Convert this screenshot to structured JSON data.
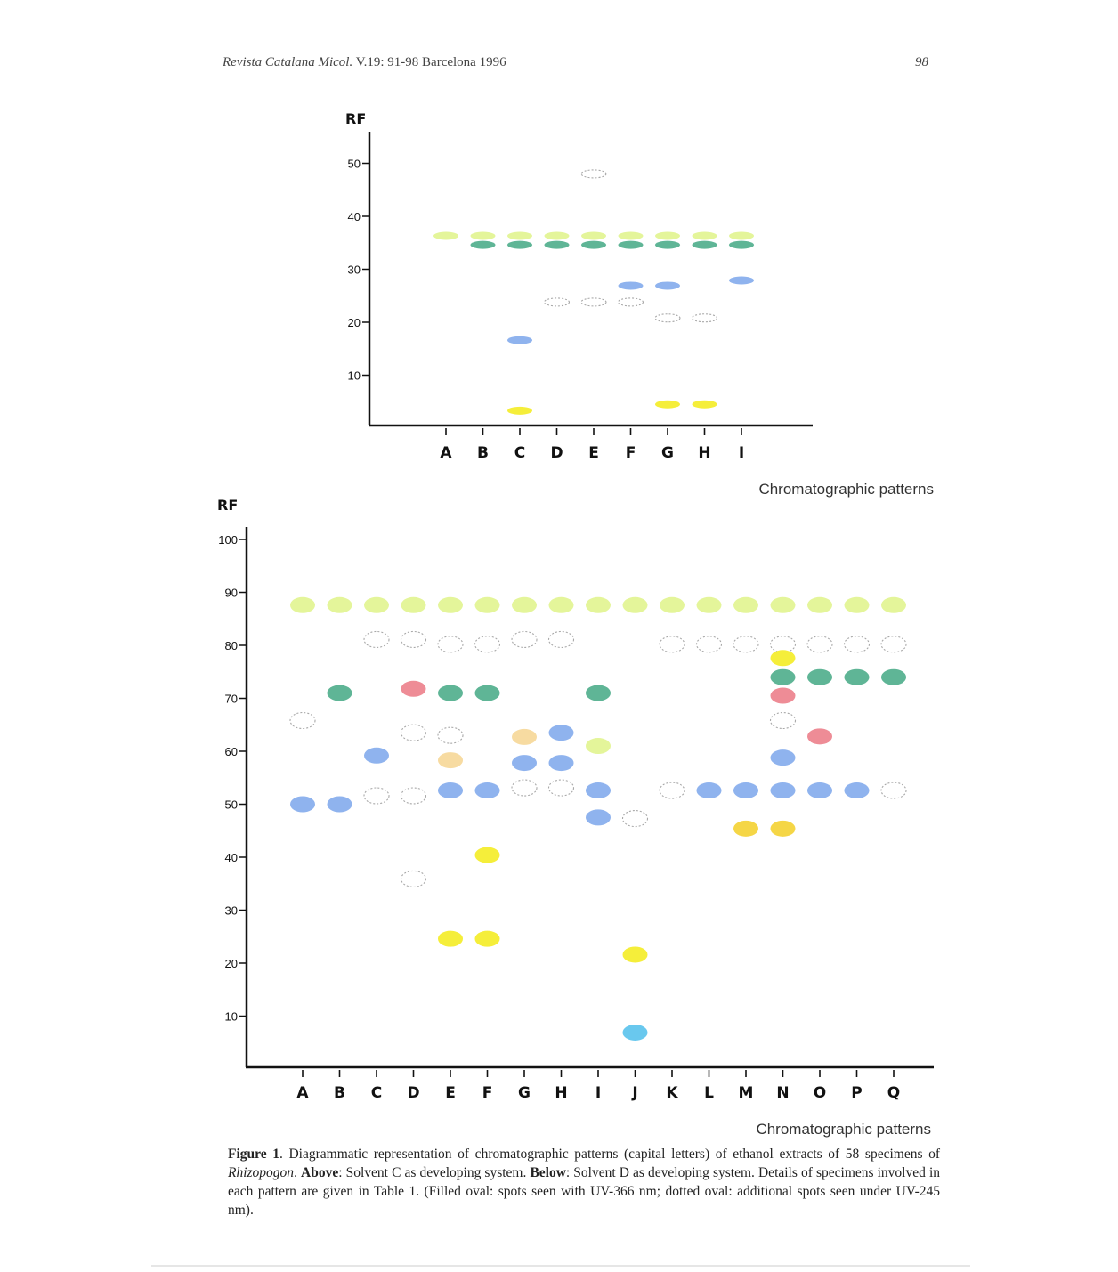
{
  "header": {
    "journal": "Revista Catalana Micol.",
    "volume_pages": "V.19:   91-98   Barcelona 1996",
    "page_number": "98"
  },
  "colors": {
    "yellow_green": "#e4f59a",
    "yellow": "#f5ee3a",
    "gold": "#f5d646",
    "teal": "#5fb596",
    "blue": "#8fb3ee",
    "cyan": "#69c8ee",
    "pink": "#ee8c96",
    "peach": "#f7dba1",
    "dotted_outline": "#a8a8a8"
  },
  "caption": {
    "figure_label": "Figure 1",
    "text_1": ". Diagrammatic representation of chromatographic patterns (capital letters) of ethanol extracts of 58 specimens of ",
    "genus": "Rhizopogon",
    "text_2": ". ",
    "above_label": "Above",
    "above_text": ": Solvent C as developing system. ",
    "below_label": "Below",
    "below_text": ": Solvent D as developing system. Details of specimens involved in each pattern are given in Table 1. (Filled oval: spots seen with UV-366 nm; dotted oval: additional spots seen under UV-245 nm)."
  },
  "chart_data": [
    {
      "type": "scatter",
      "ylabel": "RF",
      "xlabel": "Chromatographic patterns",
      "categories": [
        "A",
        "B",
        "C",
        "D",
        "E",
        "F",
        "G",
        "H",
        "I"
      ],
      "yticks": [
        10,
        20,
        30,
        40,
        50
      ],
      "ylim": [
        0,
        56
      ],
      "spots": [
        {
          "x": "A",
          "y": 36.3,
          "color": "yellow_green"
        },
        {
          "x": "B",
          "y": 36.3,
          "color": "yellow_green"
        },
        {
          "x": "C",
          "y": 36.3,
          "color": "yellow_green"
        },
        {
          "x": "D",
          "y": 36.3,
          "color": "yellow_green"
        },
        {
          "x": "E",
          "y": 36.3,
          "color": "yellow_green"
        },
        {
          "x": "F",
          "y": 36.3,
          "color": "yellow_green"
        },
        {
          "x": "G",
          "y": 36.3,
          "color": "yellow_green"
        },
        {
          "x": "H",
          "y": 36.3,
          "color": "yellow_green"
        },
        {
          "x": "I",
          "y": 36.3,
          "color": "yellow_green"
        },
        {
          "x": "B",
          "y": 34.6,
          "color": "teal"
        },
        {
          "x": "C",
          "y": 34.6,
          "color": "teal"
        },
        {
          "x": "D",
          "y": 34.6,
          "color": "teal"
        },
        {
          "x": "E",
          "y": 34.6,
          "color": "teal"
        },
        {
          "x": "F",
          "y": 34.6,
          "color": "teal"
        },
        {
          "x": "G",
          "y": 34.6,
          "color": "teal"
        },
        {
          "x": "H",
          "y": 34.6,
          "color": "teal"
        },
        {
          "x": "I",
          "y": 34.6,
          "color": "teal"
        },
        {
          "x": "E",
          "y": 48.0,
          "color": "dotted"
        },
        {
          "x": "I",
          "y": 27.9,
          "color": "blue"
        },
        {
          "x": "F",
          "y": 26.9,
          "color": "blue"
        },
        {
          "x": "G",
          "y": 26.9,
          "color": "blue"
        },
        {
          "x": "D",
          "y": 23.8,
          "color": "dotted"
        },
        {
          "x": "E",
          "y": 23.8,
          "color": "dotted"
        },
        {
          "x": "F",
          "y": 23.8,
          "color": "dotted"
        },
        {
          "x": "G",
          "y": 20.8,
          "color": "dotted"
        },
        {
          "x": "H",
          "y": 20.8,
          "color": "dotted"
        },
        {
          "x": "C",
          "y": 16.6,
          "color": "blue"
        },
        {
          "x": "G",
          "y": 4.5,
          "color": "yellow"
        },
        {
          "x": "H",
          "y": 4.5,
          "color": "yellow"
        },
        {
          "x": "C",
          "y": 3.3,
          "color": "yellow"
        }
      ]
    },
    {
      "type": "scatter",
      "ylabel": "RF",
      "xlabel": "Chromatographic patterns",
      "categories": [
        "A",
        "B",
        "C",
        "D",
        "E",
        "F",
        "G",
        "H",
        "I",
        "J",
        "K",
        "L",
        "M",
        "N",
        "O",
        "P",
        "Q"
      ],
      "yticks": [
        10,
        20,
        30,
        40,
        50,
        60,
        70,
        80,
        90,
        100
      ],
      "ylim": [
        0,
        102
      ],
      "spots": [
        {
          "x": "A",
          "y": 87.6,
          "color": "yellow_green"
        },
        {
          "x": "B",
          "y": 87.6,
          "color": "yellow_green"
        },
        {
          "x": "C",
          "y": 87.6,
          "color": "yellow_green"
        },
        {
          "x": "D",
          "y": 87.6,
          "color": "yellow_green"
        },
        {
          "x": "E",
          "y": 87.6,
          "color": "yellow_green"
        },
        {
          "x": "F",
          "y": 87.6,
          "color": "yellow_green"
        },
        {
          "x": "G",
          "y": 87.6,
          "color": "yellow_green"
        },
        {
          "x": "H",
          "y": 87.6,
          "color": "yellow_green"
        },
        {
          "x": "I",
          "y": 87.6,
          "color": "yellow_green"
        },
        {
          "x": "J",
          "y": 87.6,
          "color": "yellow_green"
        },
        {
          "x": "K",
          "y": 87.6,
          "color": "yellow_green"
        },
        {
          "x": "L",
          "y": 87.6,
          "color": "yellow_green"
        },
        {
          "x": "M",
          "y": 87.6,
          "color": "yellow_green"
        },
        {
          "x": "N",
          "y": 87.6,
          "color": "yellow_green"
        },
        {
          "x": "O",
          "y": 87.6,
          "color": "yellow_green"
        },
        {
          "x": "P",
          "y": 87.6,
          "color": "yellow_green"
        },
        {
          "x": "Q",
          "y": 87.6,
          "color": "yellow_green"
        },
        {
          "x": "C",
          "y": 81.1,
          "color": "dotted"
        },
        {
          "x": "D",
          "y": 81.1,
          "color": "dotted"
        },
        {
          "x": "G",
          "y": 81.1,
          "color": "dotted"
        },
        {
          "x": "H",
          "y": 81.1,
          "color": "dotted"
        },
        {
          "x": "E",
          "y": 80.2,
          "color": "dotted"
        },
        {
          "x": "F",
          "y": 80.2,
          "color": "dotted"
        },
        {
          "x": "K",
          "y": 80.2,
          "color": "dotted"
        },
        {
          "x": "L",
          "y": 80.2,
          "color": "dotted"
        },
        {
          "x": "M",
          "y": 80.2,
          "color": "dotted"
        },
        {
          "x": "N",
          "y": 80.2,
          "color": "dotted"
        },
        {
          "x": "O",
          "y": 80.2,
          "color": "dotted"
        },
        {
          "x": "P",
          "y": 80.2,
          "color": "dotted"
        },
        {
          "x": "Q",
          "y": 80.2,
          "color": "dotted"
        },
        {
          "x": "N",
          "y": 77.6,
          "color": "yellow"
        },
        {
          "x": "N",
          "y": 74.0,
          "color": "teal"
        },
        {
          "x": "O",
          "y": 74.0,
          "color": "teal"
        },
        {
          "x": "P",
          "y": 74.0,
          "color": "teal"
        },
        {
          "x": "Q",
          "y": 74.0,
          "color": "teal"
        },
        {
          "x": "D",
          "y": 71.8,
          "color": "pink"
        },
        {
          "x": "B",
          "y": 71.0,
          "color": "teal"
        },
        {
          "x": "E",
          "y": 71.0,
          "color": "teal"
        },
        {
          "x": "F",
          "y": 71.0,
          "color": "teal"
        },
        {
          "x": "I",
          "y": 71.0,
          "color": "teal"
        },
        {
          "x": "N",
          "y": 70.5,
          "color": "pink"
        },
        {
          "x": "A",
          "y": 65.8,
          "color": "dotted"
        },
        {
          "x": "N",
          "y": 65.8,
          "color": "dotted"
        },
        {
          "x": "D",
          "y": 63.5,
          "color": "dotted"
        },
        {
          "x": "H",
          "y": 63.5,
          "color": "blue"
        },
        {
          "x": "E",
          "y": 63.0,
          "color": "dotted"
        },
        {
          "x": "O",
          "y": 62.8,
          "color": "pink"
        },
        {
          "x": "G",
          "y": 62.7,
          "color": "peach"
        },
        {
          "x": "I",
          "y": 61.0,
          "color": "yellow_green"
        },
        {
          "x": "C",
          "y": 59.2,
          "color": "blue"
        },
        {
          "x": "N",
          "y": 58.8,
          "color": "blue"
        },
        {
          "x": "E",
          "y": 58.3,
          "color": "peach"
        },
        {
          "x": "G",
          "y": 57.8,
          "color": "blue"
        },
        {
          "x": "H",
          "y": 57.8,
          "color": "blue"
        },
        {
          "x": "E",
          "y": 52.6,
          "color": "blue"
        },
        {
          "x": "F",
          "y": 52.6,
          "color": "blue"
        },
        {
          "x": "I",
          "y": 52.6,
          "color": "blue"
        },
        {
          "x": "L",
          "y": 52.6,
          "color": "blue"
        },
        {
          "x": "M",
          "y": 52.6,
          "color": "blue"
        },
        {
          "x": "N",
          "y": 52.6,
          "color": "blue"
        },
        {
          "x": "O",
          "y": 52.6,
          "color": "blue"
        },
        {
          "x": "P",
          "y": 52.6,
          "color": "blue"
        },
        {
          "x": "G",
          "y": 53.1,
          "color": "dotted"
        },
        {
          "x": "H",
          "y": 53.1,
          "color": "dotted"
        },
        {
          "x": "K",
          "y": 52.6,
          "color": "dotted"
        },
        {
          "x": "Q",
          "y": 52.6,
          "color": "dotted"
        },
        {
          "x": "C",
          "y": 51.6,
          "color": "dotted"
        },
        {
          "x": "D",
          "y": 51.6,
          "color": "dotted"
        },
        {
          "x": "A",
          "y": 50.0,
          "color": "blue"
        },
        {
          "x": "B",
          "y": 50.0,
          "color": "blue"
        },
        {
          "x": "I",
          "y": 47.5,
          "color": "blue"
        },
        {
          "x": "J",
          "y": 47.3,
          "color": "dotted"
        },
        {
          "x": "M",
          "y": 45.4,
          "color": "gold"
        },
        {
          "x": "N",
          "y": 45.4,
          "color": "gold"
        },
        {
          "x": "F",
          "y": 40.4,
          "color": "yellow"
        },
        {
          "x": "D",
          "y": 35.9,
          "color": "dotted"
        },
        {
          "x": "E",
          "y": 24.6,
          "color": "yellow"
        },
        {
          "x": "F",
          "y": 24.6,
          "color": "yellow"
        },
        {
          "x": "J",
          "y": 21.6,
          "color": "yellow"
        },
        {
          "x": "J",
          "y": 6.9,
          "color": "cyan"
        }
      ]
    }
  ]
}
